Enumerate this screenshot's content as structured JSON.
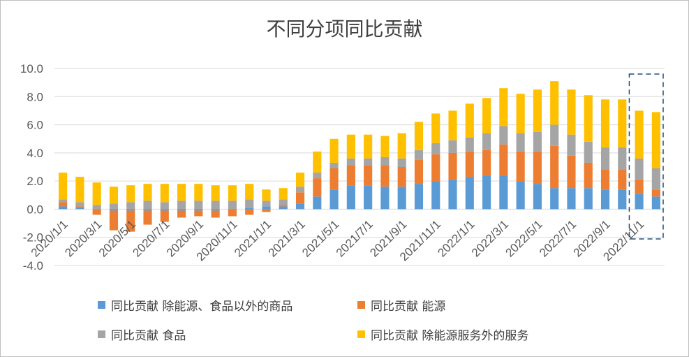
{
  "chart_data": {
    "type": "bar",
    "stacked": true,
    "title": "不同分项同比贡献",
    "xlabel": "",
    "ylabel": "",
    "ylim": [
      -4,
      10
    ],
    "y_ticks": [
      "10.0",
      "8.0",
      "6.0",
      "4.0",
      "2.0",
      "0.0",
      "-2.0",
      "-4.0"
    ],
    "categories": [
      "2020/1/1",
      "2020/2/1",
      "2020/3/1",
      "2020/4/1",
      "2020/5/1",
      "2020/6/1",
      "2020/7/1",
      "2020/8/1",
      "2020/9/1",
      "2020/10/1",
      "2020/11/1",
      "2020/12/1",
      "2021/1/1",
      "2021/2/1",
      "2021/3/1",
      "2021/4/1",
      "2021/5/1",
      "2021/6/1",
      "2021/7/1",
      "2021/8/1",
      "2021/9/1",
      "2021/10/1",
      "2021/11/1",
      "2021/12/1",
      "2022/1/1",
      "2022/2/1",
      "2022/3/1",
      "2022/4/1",
      "2022/5/1",
      "2022/6/1",
      "2022/7/1",
      "2022/8/1",
      "2022/9/1",
      "2022/10/1",
      "2022/11/1",
      "2022/12/1"
    ],
    "x_tick_labels": [
      "2020/1/1",
      "2020/3/1",
      "2020/5/1",
      "2020/7/1",
      "2020/9/1",
      "2020/11/1",
      "2021/1/1",
      "2021/3/1",
      "2021/5/1",
      "2021/7/1",
      "2021/9/1",
      "2021/11/1",
      "2022/1/1",
      "2022/3/1",
      "2022/5/1",
      "2022/7/1",
      "2022/9/1",
      "2022/11/1"
    ],
    "series": [
      {
        "name": "同比贡献 除能源、食品以外的商品",
        "color": "#5b9bd5",
        "values": [
          0.2,
          0.1,
          0.0,
          -0.1,
          -0.1,
          -0.1,
          -0.1,
          -0.1,
          -0.1,
          -0.1,
          0.0,
          0.1,
          0.2,
          0.2,
          0.4,
          0.9,
          1.4,
          1.7,
          1.7,
          1.6,
          1.6,
          1.8,
          2.0,
          2.1,
          2.3,
          2.4,
          2.4,
          2.0,
          1.8,
          1.5,
          1.5,
          1.5,
          1.4,
          1.4,
          1.1,
          0.9
        ]
      },
      {
        "name": "同比贡献 能源",
        "color": "#ed7d31",
        "values": [
          0.3,
          0.1,
          -0.4,
          -1.4,
          -1.5,
          -1.0,
          -0.8,
          -0.5,
          -0.4,
          -0.5,
          -0.5,
          -0.4,
          -0.2,
          0.1,
          0.8,
          1.3,
          1.5,
          1.4,
          1.4,
          1.5,
          1.4,
          1.7,
          1.9,
          1.9,
          1.8,
          1.8,
          2.2,
          2.1,
          2.3,
          3.0,
          2.3,
          1.8,
          1.4,
          1.4,
          1.0,
          0.5
        ]
      },
      {
        "name": "同比贡献 食品",
        "color": "#a5a5a5",
        "values": [
          0.2,
          0.3,
          0.3,
          0.4,
          0.5,
          0.6,
          0.5,
          0.6,
          0.6,
          0.6,
          0.6,
          0.6,
          0.4,
          0.4,
          0.4,
          0.4,
          0.4,
          0.5,
          0.5,
          0.6,
          0.6,
          0.7,
          0.8,
          0.9,
          1.0,
          1.2,
          1.3,
          1.3,
          1.4,
          1.5,
          1.5,
          1.5,
          1.6,
          1.6,
          1.5,
          1.5
        ]
      },
      {
        "name": "同比贡献 除能源服务外的服务",
        "color": "#ffc000",
        "values": [
          1.9,
          1.8,
          1.6,
          1.2,
          1.2,
          1.2,
          1.3,
          1.2,
          1.2,
          1.1,
          1.1,
          1.1,
          0.8,
          0.8,
          1.0,
          1.5,
          1.7,
          1.7,
          1.7,
          1.5,
          1.8,
          2.0,
          2.1,
          2.1,
          2.4,
          2.5,
          2.7,
          2.8,
          3.0,
          3.1,
          3.2,
          3.3,
          3.4,
          3.4,
          3.4,
          4.0
        ]
      }
    ],
    "grid": true,
    "legend_position": "bottom",
    "annotation": "dashed box around the last two months"
  }
}
